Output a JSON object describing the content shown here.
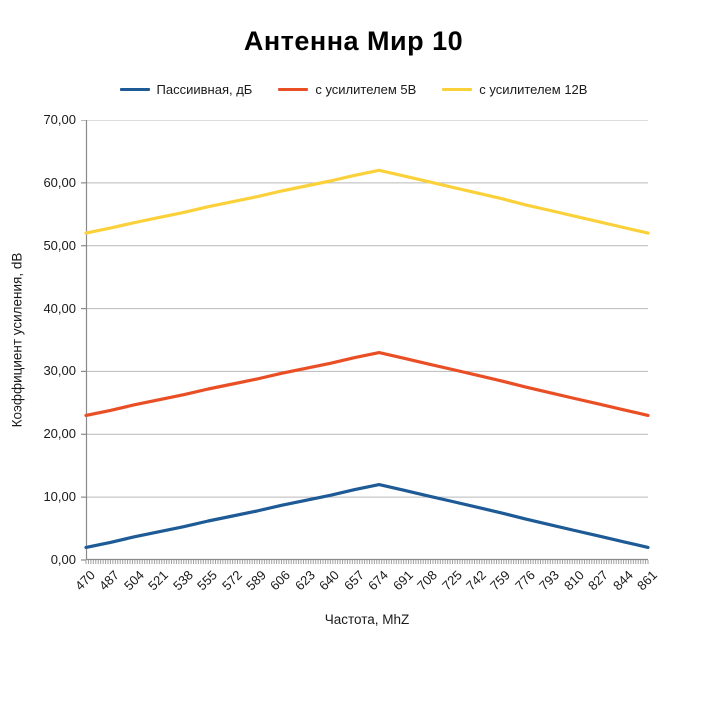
{
  "title": "Антенна Мир 10",
  "colors": {
    "grid": "#b9b9b9",
    "axis": "#8a8a8a",
    "text": "#1a1a1a",
    "series_blue": "#1d5a96",
    "series_red": "#e94e25",
    "series_yellow": "#fbd13b"
  },
  "chart_data": {
    "type": "line",
    "title": "Антенна Мир 10",
    "xlabel": "Частота, MhZ",
    "ylabel": "Коэффициент усиления, dB",
    "ylim": [
      0,
      70
    ],
    "grid": "horizontal",
    "legend_position": "top",
    "yticks": [
      {
        "value": 0,
        "label": "0,00"
      },
      {
        "value": 10,
        "label": "10,00"
      },
      {
        "value": 20,
        "label": "20,00"
      },
      {
        "value": 30,
        "label": "30,00"
      },
      {
        "value": 40,
        "label": "40,00"
      },
      {
        "value": 50,
        "label": "50,00"
      },
      {
        "value": 60,
        "label": "60,00"
      },
      {
        "value": 70,
        "label": "70,00"
      }
    ],
    "categories": [
      470,
      487,
      504,
      521,
      538,
      555,
      572,
      589,
      606,
      623,
      640,
      657,
      674,
      691,
      708,
      725,
      742,
      759,
      776,
      793,
      810,
      827,
      844,
      861
    ],
    "series": [
      {
        "name": "Пассиивная, дБ",
        "color": "#1d5a96",
        "key_points": {
          "start": 2,
          "peak": 12,
          "peak_at": 674,
          "end": 2
        },
        "values": [
          2.0,
          2.8,
          3.7,
          4.5,
          5.3,
          6.2,
          7.0,
          7.8,
          8.7,
          9.5,
          10.3,
          11.2,
          12.0,
          11.1,
          10.2,
          9.3,
          8.4,
          7.5,
          6.5,
          5.6,
          4.7,
          3.8,
          2.9,
          2.0
        ]
      },
      {
        "name": "с усилителем 5В",
        "color": "#e94e25",
        "key_points": {
          "start": 23,
          "peak": 33,
          "peak_at": 674,
          "end": 23
        },
        "values": [
          23.0,
          23.8,
          24.7,
          25.5,
          26.3,
          27.2,
          28.0,
          28.8,
          29.7,
          30.5,
          31.3,
          32.2,
          33.0,
          32.1,
          31.2,
          30.3,
          29.4,
          28.5,
          27.5,
          26.6,
          25.7,
          24.8,
          23.9,
          23.0
        ]
      },
      {
        "name": "с усилителем 12В",
        "color": "#fbd13b",
        "key_points": {
          "start": 52,
          "peak": 62,
          "peak_at": 674,
          "end": 52
        },
        "values": [
          52.0,
          52.8,
          53.7,
          54.5,
          55.3,
          56.2,
          57.0,
          57.8,
          58.7,
          59.5,
          60.3,
          61.2,
          62.0,
          61.1,
          60.2,
          59.3,
          58.4,
          57.5,
          56.5,
          55.6,
          54.7,
          53.8,
          52.9,
          52.0
        ]
      }
    ]
  }
}
